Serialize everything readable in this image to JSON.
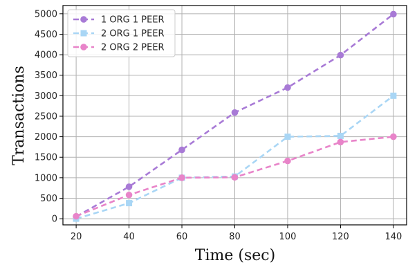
{
  "chart_data": {
    "type": "line",
    "xlabel": "Time (sec)",
    "ylabel": "Transactions",
    "x": [
      20,
      40,
      60,
      80,
      100,
      120,
      140
    ],
    "xlim": [
      15,
      145
    ],
    "ylim": [
      -150,
      5200
    ],
    "xticks": [
      20,
      40,
      60,
      80,
      100,
      120,
      140
    ],
    "yticks": [
      0,
      500,
      1000,
      1500,
      2000,
      2500,
      3000,
      3500,
      4000,
      4500,
      5000
    ],
    "grid": true,
    "legend_position": "top-left",
    "series": [
      {
        "name": "1 ORG 1 PEER",
        "color": "#a87ad6",
        "marker": "circle",
        "linestyle": "dashed",
        "values": [
          50,
          780,
          1680,
          2590,
          3200,
          3990,
          4990
        ]
      },
      {
        "name": "2 ORG 1 PEER",
        "color": "#a9d6f5",
        "marker": "square",
        "linestyle": "dashed",
        "values": [
          0,
          380,
          1000,
          1030,
          2000,
          2020,
          3000
        ]
      },
      {
        "name": "2 ORG 2 PEER",
        "color": "#e884c9",
        "marker": "circle",
        "linestyle": "dashed",
        "values": [
          60,
          580,
          1000,
          1010,
          1410,
          1870,
          2000
        ]
      }
    ]
  }
}
